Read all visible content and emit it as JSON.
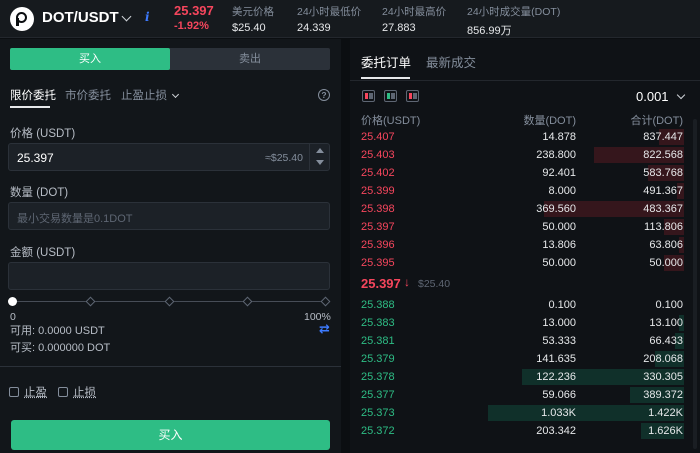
{
  "header": {
    "pair": "DOT/USDT",
    "last_price": "25.397",
    "change": "-1.92%",
    "stats": [
      {
        "label": "美元价格",
        "value": "$25.40"
      },
      {
        "label": "24小时最低价",
        "value": "24.339"
      },
      {
        "label": "24小时最高价",
        "value": "27.883"
      },
      {
        "label": "24小时成交量(DOT)",
        "value": "856.99万"
      }
    ],
    "info_glyph": "i"
  },
  "order_panel": {
    "side_tabs": {
      "buy": "买入",
      "sell": "卖出"
    },
    "order_types": [
      "限价委托",
      "市价委托",
      "止盈止损"
    ],
    "help_glyph": "?",
    "price_label": "价格 (USDT)",
    "price_value": "25.397",
    "price_hint": "≈$25.40",
    "quantity_label": "数量 (DOT)",
    "quantity_placeholder": "最小交易数量是0.1DOT",
    "amount_label": "金额 (USDT)",
    "slider_fraction": 0,
    "slider_min": "0",
    "slider_max": "100%",
    "available": "可用: 0.0000 USDT",
    "buyable": "可买: 0.000000 DOT",
    "take_profit": "止盈",
    "stop_loss": "止损",
    "buy_button": "买入"
  },
  "orderbook": {
    "tabs": [
      "委托订单",
      "最新成交"
    ],
    "precision": "0.001",
    "headers": [
      "价格(USDT)",
      "数量(DOT)",
      "合计(DOT)"
    ],
    "asks": [
      {
        "price": "25.407",
        "qty": "14.878",
        "total": "837.447",
        "depth": 0.11
      },
      {
        "price": "25.403",
        "qty": "238.800",
        "total": "822.568",
        "depth": 0.4
      },
      {
        "price": "25.402",
        "qty": "92.401",
        "total": "583.768",
        "depth": 0.16
      },
      {
        "price": "25.399",
        "qty": "8.000",
        "total": "491.367",
        "depth": 0.03
      },
      {
        "price": "25.398",
        "qty": "369.560",
        "total": "483.367",
        "depth": 0.62
      },
      {
        "price": "25.397",
        "qty": "50.000",
        "total": "113.806",
        "depth": 0.09
      },
      {
        "price": "25.396",
        "qty": "13.806",
        "total": "63.806",
        "depth": 0.02
      },
      {
        "price": "25.395",
        "qty": "50.000",
        "total": "50.000",
        "depth": 0.09
      }
    ],
    "mid_price": "25.397",
    "mid_arrow": "↓",
    "mid_usd": "$25.40",
    "bids": [
      {
        "price": "25.388",
        "qty": "0.100",
        "total": "0.100",
        "depth": 0.0
      },
      {
        "price": "25.383",
        "qty": "13.000",
        "total": "13.100",
        "depth": 0.02
      },
      {
        "price": "25.381",
        "qty": "53.333",
        "total": "66.433",
        "depth": 0.04
      },
      {
        "price": "25.379",
        "qty": "141.635",
        "total": "208.068",
        "depth": 0.13
      },
      {
        "price": "25.378",
        "qty": "122.236",
        "total": "330.305",
        "depth": 0.72
      },
      {
        "price": "25.377",
        "qty": "59.066",
        "total": "389.372",
        "depth": 0.24
      },
      {
        "price": "25.373",
        "qty": "1.033K",
        "total": "1.422K",
        "depth": 0.87
      },
      {
        "price": "25.372",
        "qty": "203.342",
        "total": "1.626K",
        "depth": 0.19
      }
    ]
  }
}
